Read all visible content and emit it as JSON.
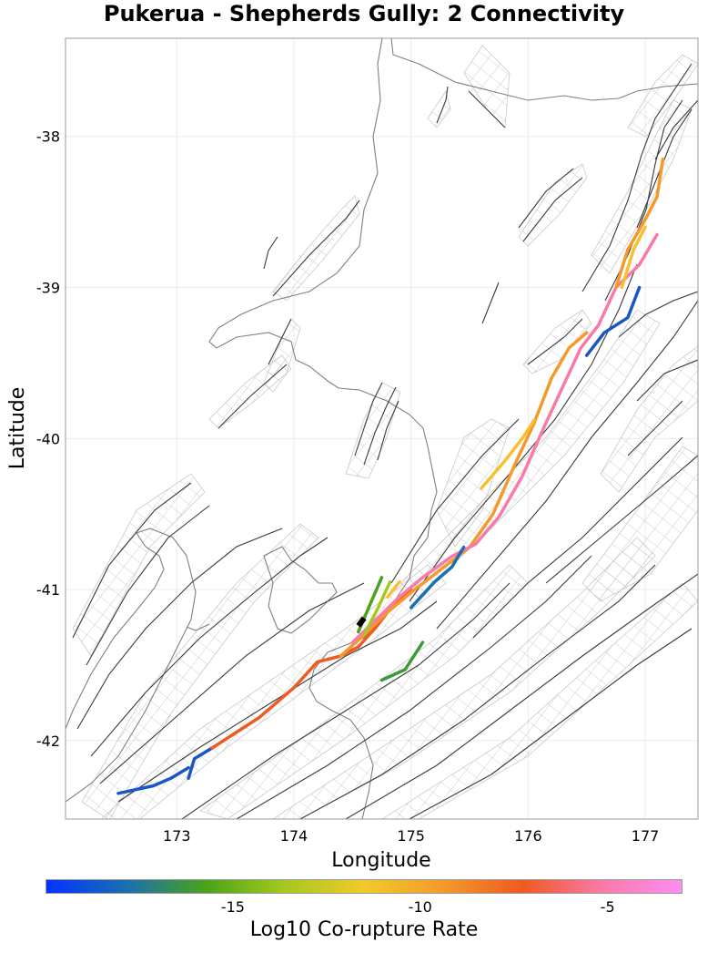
{
  "title": "Pukerua - Shepherds Gully: 2 Connectivity",
  "xaxis": {
    "label": "Longitude",
    "ticks": [
      "173",
      "174",
      "175",
      "176",
      "177"
    ],
    "tick_values": [
      173,
      174,
      175,
      176,
      177
    ],
    "range": [
      172.05,
      177.45
    ]
  },
  "yaxis": {
    "label": "Latitude",
    "ticks": [
      "-38",
      "-39",
      "-40",
      "-41",
      "-42"
    ],
    "tick_values": [
      -38,
      -39,
      -40,
      -41,
      -42
    ],
    "range": [
      -42.52,
      -37.35
    ]
  },
  "colorbar": {
    "label": "Log10 Co-rupture Rate",
    "ticks": [
      "-15",
      "-10",
      "-5"
    ],
    "tick_values": [
      -15,
      -10,
      -5
    ],
    "range": [
      -20,
      -3
    ],
    "stops": [
      "#0433ff",
      "#1a6fb0",
      "#4aa31a",
      "#a6c81f",
      "#f2c92b",
      "#f39a2b",
      "#ee5a22",
      "#f97aa8",
      "#ff8ef3"
    ]
  },
  "colors": {
    "coastline": "#808080",
    "fault_trace": "#333333",
    "fault_plane": "#b0b0b0",
    "grid": "#ebebeb",
    "selected": "#000000"
  },
  "chart_data": {
    "type": "map",
    "title": "Pukerua - Shepherds Gully: 2 Connectivity",
    "xlabel": "Longitude",
    "ylabel": "Latitude",
    "selected_fault": [
      [
        174.55,
        -41.24
      ],
      [
        174.6,
        -41.19
      ]
    ],
    "highlighted_ruptures": [
      {
        "color": "#1a56c4",
        "points": [
          [
            172.5,
            -42.35
          ],
          [
            172.8,
            -42.3
          ],
          [
            172.95,
            -42.25
          ],
          [
            173.1,
            -42.18
          ]
        ]
      },
      {
        "color": "#1a56c4",
        "points": [
          [
            173.1,
            -42.25
          ],
          [
            173.15,
            -42.12
          ],
          [
            173.3,
            -42.05
          ]
        ]
      },
      {
        "color": "#ee5a22",
        "points": [
          [
            173.3,
            -42.05
          ],
          [
            173.7,
            -41.85
          ],
          [
            174.0,
            -41.65
          ],
          [
            174.2,
            -41.48
          ],
          [
            174.4,
            -41.44
          ],
          [
            174.55,
            -41.38
          ]
        ]
      },
      {
        "color": "#ee5a22",
        "points": [
          [
            174.55,
            -41.38
          ],
          [
            174.7,
            -41.25
          ],
          [
            174.85,
            -41.1
          ],
          [
            175.0,
            -41.0
          ]
        ]
      },
      {
        "color": "#f39a2b",
        "points": [
          [
            174.4,
            -41.44
          ],
          [
            174.6,
            -41.3
          ],
          [
            174.8,
            -41.15
          ],
          [
            175.0,
            -41.02
          ],
          [
            175.2,
            -40.9
          ],
          [
            175.5,
            -40.72
          ],
          [
            175.7,
            -40.5
          ],
          [
            175.9,
            -40.15
          ],
          [
            176.05,
            -39.9
          ],
          [
            176.2,
            -39.6
          ],
          [
            176.35,
            -39.4
          ],
          [
            176.5,
            -39.3
          ]
        ]
      },
      {
        "color": "#f8c030",
        "points": [
          [
            175.6,
            -40.33
          ],
          [
            175.8,
            -40.15
          ],
          [
            175.95,
            -40.0
          ],
          [
            176.05,
            -39.88
          ]
        ]
      },
      {
        "color": "#f97aa8",
        "points": [
          [
            174.5,
            -41.35
          ],
          [
            174.7,
            -41.2
          ],
          [
            174.9,
            -41.05
          ],
          [
            175.1,
            -40.92
          ],
          [
            175.35,
            -40.78
          ],
          [
            175.55,
            -40.7
          ],
          [
            175.75,
            -40.52
          ],
          [
            175.95,
            -40.25
          ],
          [
            176.15,
            -39.9
          ],
          [
            176.3,
            -39.65
          ],
          [
            176.45,
            -39.4
          ],
          [
            176.6,
            -39.25
          ],
          [
            176.75,
            -39.0
          ],
          [
            176.95,
            -38.85
          ],
          [
            177.1,
            -38.65
          ]
        ]
      },
      {
        "color": "#f39a2b",
        "points": [
          [
            176.75,
            -39.0
          ],
          [
            176.85,
            -38.75
          ],
          [
            177.0,
            -38.55
          ],
          [
            177.1,
            -38.4
          ],
          [
            177.15,
            -38.15
          ]
        ]
      },
      {
        "color": "#f8c030",
        "points": [
          [
            176.8,
            -39.0
          ],
          [
            176.9,
            -38.75
          ],
          [
            177.0,
            -38.6
          ]
        ]
      },
      {
        "color": "#1a56c4",
        "points": [
          [
            176.5,
            -39.45
          ],
          [
            176.65,
            -39.3
          ],
          [
            176.85,
            -39.2
          ],
          [
            176.95,
            -39.0
          ]
        ]
      },
      {
        "color": "#4aa31a",
        "points": [
          [
            174.55,
            -41.28
          ],
          [
            174.65,
            -41.1
          ],
          [
            174.75,
            -40.92
          ]
        ]
      },
      {
        "color": "#a6c81f",
        "points": [
          [
            174.6,
            -41.3
          ],
          [
            174.72,
            -41.12
          ],
          [
            174.82,
            -40.95
          ]
        ]
      },
      {
        "color": "#1a6fb0",
        "points": [
          [
            175.0,
            -41.12
          ],
          [
            175.2,
            -40.95
          ],
          [
            175.35,
            -40.85
          ],
          [
            175.45,
            -40.72
          ]
        ]
      },
      {
        "color": "#3c9a3c",
        "points": [
          [
            174.75,
            -41.6
          ],
          [
            174.95,
            -41.53
          ],
          [
            175.1,
            -41.35
          ]
        ]
      },
      {
        "color": "#f8c030",
        "points": [
          [
            174.8,
            -41.05
          ],
          [
            174.9,
            -40.95
          ]
        ]
      }
    ]
  }
}
